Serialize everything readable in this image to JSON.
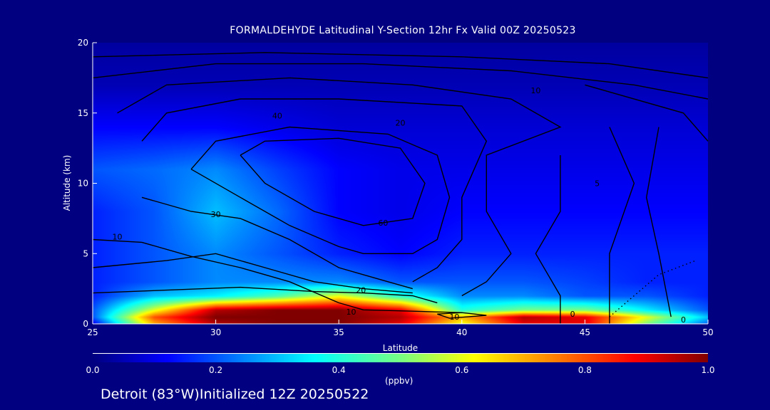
{
  "chart_data": {
    "type": "heatmap",
    "title": "FORMALDEHYDE Latitudinal Y-Section 12hr  Fx Valid 00Z 20250523",
    "xlabel": "Latitude",
    "ylabel": "Altitude (km)",
    "xlim": [
      25,
      50
    ],
    "ylim": [
      0,
      20
    ],
    "xticks": [
      "25",
      "30",
      "35",
      "40",
      "45",
      "50"
    ],
    "yticks": [
      "0",
      "5",
      "10",
      "15",
      "20"
    ],
    "colorbar": {
      "range": [
        0.0,
        1.0
      ],
      "ticks": [
        "0.0",
        "0.2",
        "0.4",
        "0.6",
        "0.8",
        "1.0"
      ],
      "unit": "(ppbv)",
      "colormap": "jet"
    },
    "field": {
      "lat": [
        25,
        27.5,
        30,
        32.5,
        35,
        37.5,
        40,
        42.5,
        45,
        47.5,
        50
      ],
      "alt": [
        0,
        0.5,
        1,
        2,
        3,
        5,
        8,
        11,
        14,
        17,
        20
      ],
      "values": [
        [
          0.1,
          0.7,
          0.95,
          1,
          1,
          0.9,
          0.6,
          0.9,
          0.9,
          0.5,
          0.2
        ],
        [
          0.2,
          0.8,
          1,
          1,
          1,
          0.95,
          0.7,
          0.95,
          0.9,
          0.6,
          0.3
        ],
        [
          0.2,
          0.6,
          0.95,
          1,
          1,
          0.9,
          0.4,
          0.5,
          0.5,
          0.35,
          0.2
        ],
        [
          0.15,
          0.3,
          0.35,
          0.45,
          0.6,
          0.4,
          0.25,
          0.25,
          0.2,
          0.2,
          0.15
        ],
        [
          0.15,
          0.2,
          0.25,
          0.25,
          0.25,
          0.2,
          0.2,
          0.2,
          0.18,
          0.15,
          0.15
        ],
        [
          0.15,
          0.2,
          0.25,
          0.2,
          0.15,
          0.12,
          0.15,
          0.15,
          0.15,
          0.15,
          0.15
        ],
        [
          0.15,
          0.2,
          0.3,
          0.22,
          0.12,
          0.1,
          0.12,
          0.12,
          0.12,
          0.12,
          0.12
        ],
        [
          0.2,
          0.22,
          0.25,
          0.18,
          0.12,
          0.1,
          0.1,
          0.1,
          0.1,
          0.1,
          0.1
        ],
        [
          0.12,
          0.12,
          0.12,
          0.1,
          0.08,
          0.08,
          0.08,
          0.08,
          0.08,
          0.08,
          0.08
        ],
        [
          0.05,
          0.05,
          0.05,
          0.05,
          0.05,
          0.05,
          0.05,
          0.05,
          0.05,
          0.05,
          0.05
        ],
        [
          0.03,
          0.03,
          0.03,
          0.03,
          0.03,
          0.03,
          0.03,
          0.03,
          0.03,
          0.03,
          0.03
        ]
      ]
    },
    "contours": [
      {
        "level": 20,
        "points": [
          [
            25,
            2.2
          ],
          [
            28,
            2.4
          ],
          [
            31,
            2.6
          ],
          [
            34,
            2.3
          ],
          [
            36,
            2.2
          ],
          [
            38,
            2.0
          ],
          [
            39,
            1.5
          ]
        ]
      },
      {
        "level": 30,
        "points": [
          [
            25,
            4
          ],
          [
            28,
            4.5
          ],
          [
            30,
            5
          ],
          [
            32,
            4
          ],
          [
            34,
            3
          ],
          [
            36,
            2.5
          ],
          [
            38,
            2.2
          ]
        ]
      },
      {
        "level": 10,
        "points": [
          [
            25,
            6
          ],
          [
            27,
            5.8
          ],
          [
            29,
            4.8
          ],
          [
            31,
            4
          ],
          [
            33,
            3
          ],
          [
            35,
            1.5
          ],
          [
            36,
            1.0
          ],
          [
            38,
            0.9
          ],
          [
            40,
            0.8
          ]
        ]
      },
      {
        "level": 40,
        "points": [
          [
            27,
            9
          ],
          [
            29,
            8
          ],
          [
            31,
            7.5
          ],
          [
            33,
            6
          ],
          [
            35,
            4
          ],
          [
            36,
            3.5
          ],
          [
            37,
            3
          ],
          [
            38,
            2.5
          ]
        ]
      },
      {
        "level": 50,
        "points": [
          [
            29,
            11
          ],
          [
            31,
            9
          ],
          [
            33,
            7
          ],
          [
            35,
            5.5
          ],
          [
            36,
            5
          ],
          [
            38,
            5
          ],
          [
            39,
            6
          ],
          [
            39.5,
            9
          ],
          [
            39,
            12
          ],
          [
            37,
            13.5
          ],
          [
            33,
            14
          ],
          [
            30,
            13
          ],
          [
            29,
            11
          ]
        ]
      },
      {
        "level": 60,
        "points": [
          [
            31,
            12
          ],
          [
            32,
            10
          ],
          [
            34,
            8
          ],
          [
            36,
            7
          ],
          [
            38,
            7.5
          ],
          [
            38.5,
            10
          ],
          [
            37.5,
            12.5
          ],
          [
            35,
            13.2
          ],
          [
            32,
            13
          ],
          [
            31,
            12
          ]
        ]
      },
      {
        "level": 40,
        "points": [
          [
            27,
            13
          ],
          [
            28,
            15
          ],
          [
            31,
            16
          ],
          [
            35,
            16
          ],
          [
            40,
            15.5
          ],
          [
            41,
            13
          ],
          [
            40,
            9
          ],
          [
            40,
            6
          ],
          [
            39,
            4
          ],
          [
            38,
            3
          ]
        ]
      },
      {
        "level": 30,
        "points": [
          [
            26,
            15
          ],
          [
            28,
            17
          ],
          [
            33,
            17.5
          ],
          [
            38,
            17
          ],
          [
            42,
            16
          ],
          [
            44,
            14
          ],
          [
            41,
            12
          ],
          [
            41,
            8
          ],
          [
            42,
            5
          ],
          [
            41,
            3
          ],
          [
            40,
            2
          ]
        ]
      },
      {
        "level": 20,
        "points": [
          [
            25,
            17.5
          ],
          [
            30,
            18.5
          ],
          [
            36,
            18.5
          ],
          [
            42,
            18
          ],
          [
            47,
            17
          ],
          [
            50,
            16
          ]
        ]
      },
      {
        "level": 10,
        "points": [
          [
            25,
            19
          ],
          [
            32,
            19.3
          ],
          [
            40,
            19
          ],
          [
            46,
            18.5
          ],
          [
            50,
            17.5
          ]
        ]
      },
      {
        "level": 10,
        "points": [
          [
            44,
            12
          ],
          [
            44,
            8
          ],
          [
            43,
            5
          ],
          [
            44,
            2
          ],
          [
            44,
            0
          ]
        ]
      },
      {
        "level": 10,
        "points": [
          [
            46,
            14
          ],
          [
            47,
            10
          ],
          [
            46,
            5
          ],
          [
            46,
            0
          ]
        ]
      },
      {
        "level": 0,
        "points": [
          [
            48,
            14
          ],
          [
            47.5,
            9
          ],
          [
            48,
            5
          ],
          [
            48.5,
            0.5
          ]
        ]
      },
      {
        "level": 10,
        "points": [
          [
            45,
            17
          ],
          [
            49,
            15
          ],
          [
            50,
            13
          ]
        ]
      },
      {
        "level": -1,
        "dotted": true,
        "points": [
          [
            46,
            0.5
          ],
          [
            47,
            2
          ],
          [
            48,
            3.5
          ],
          [
            49.5,
            4.5
          ]
        ]
      },
      {
        "level": 10,
        "points": [
          [
            39,
            0.7
          ],
          [
            40,
            0.8
          ],
          [
            41,
            0.6
          ],
          [
            39.5,
            0.4
          ],
          [
            39,
            0.7
          ]
        ]
      }
    ],
    "contour_labels": [
      {
        "text": "30",
        "lat": 30,
        "alt": 7.8
      },
      {
        "text": "10",
        "lat": 26,
        "alt": 6.2
      },
      {
        "text": "20",
        "lat": 35.9,
        "alt": 2.4
      },
      {
        "text": "10",
        "lat": 35.5,
        "alt": 0.85
      },
      {
        "text": "10",
        "lat": 39.7,
        "alt": 0.5
      },
      {
        "text": "0",
        "lat": 44.5,
        "alt": 0.7
      },
      {
        "text": "0",
        "lat": 49,
        "alt": 0.3
      },
      {
        "text": "60",
        "lat": 36.8,
        "alt": 7.2
      },
      {
        "text": "40",
        "lat": 32.5,
        "alt": 14.8
      },
      {
        "text": "10",
        "lat": 43,
        "alt": 16.6
      },
      {
        "text": "20",
        "lat": 37.5,
        "alt": 14.3
      },
      {
        "text": "5",
        "lat": 45.5,
        "alt": 10
      }
    ]
  },
  "footer": "Detroit (83°W)Initialized 12Z 20250522"
}
